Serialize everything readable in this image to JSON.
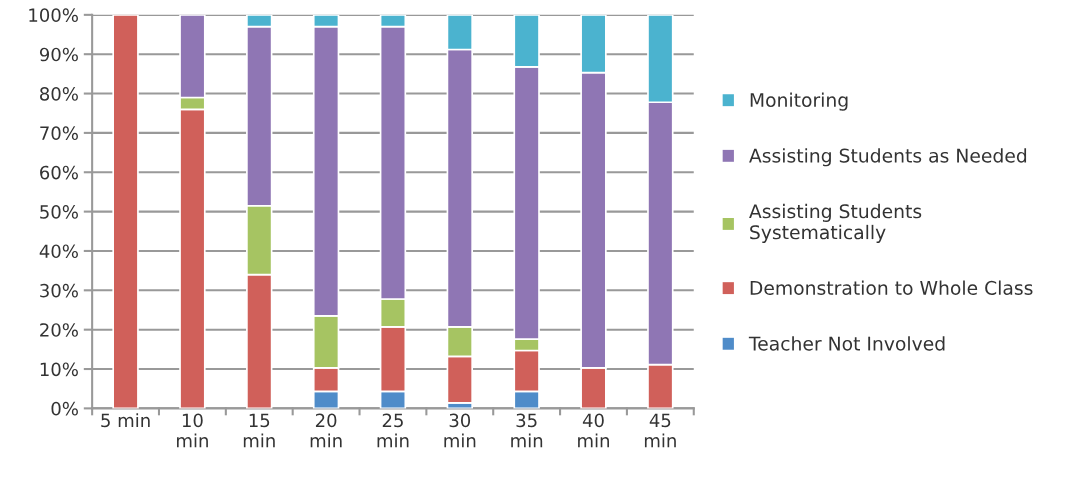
{
  "chart_data": {
    "type": "bar",
    "stacked": true,
    "categories": [
      "5 min",
      "10\nmin",
      "15\nmin",
      "20\nmin",
      "25\nmin",
      "30\nmin",
      "35\nmin",
      "40\nmin",
      "45\nmin"
    ],
    "series": [
      {
        "name": "Teacher Not Involved",
        "color": "#4f8cc9",
        "values": [
          0,
          0,
          0,
          4.3,
          4.3,
          1.4,
          4.3,
          0,
          0
        ]
      },
      {
        "name": "Demonstration to Whole Class",
        "color": "#d0605a",
        "values": [
          100,
          76,
          34,
          6,
          16.4,
          11.8,
          10.4,
          10.3,
          11.1
        ]
      },
      {
        "name": "Assisting Students\nSystematically",
        "color": "#a6c462",
        "values": [
          0,
          3,
          17.5,
          13.2,
          7.1,
          7.5,
          2.9,
          0,
          0
        ]
      },
      {
        "name": "Assisting Students as Needed",
        "color": "#8f76b4",
        "values": [
          0,
          21,
          45.5,
          73.5,
          69.2,
          70.5,
          69.2,
          75,
          66.7
        ]
      },
      {
        "name": "Monitoring",
        "color": "#4bb3cf",
        "values": [
          0,
          0,
          3,
          3,
          3,
          8.8,
          13.2,
          14.7,
          22.2
        ]
      }
    ],
    "ylim": [
      0,
      100
    ],
    "yticks": [
      {
        "value": 0,
        "label": "0%"
      },
      {
        "value": 10,
        "label": "10%"
      },
      {
        "value": 20,
        "label": "20%"
      },
      {
        "value": 30,
        "label": "30%"
      },
      {
        "value": 40,
        "label": "40%"
      },
      {
        "value": 50,
        "label": "50%"
      },
      {
        "value": 60,
        "label": "60%"
      },
      {
        "value": 70,
        "label": "70%"
      },
      {
        "value": 80,
        "label": "80%"
      },
      {
        "value": 90,
        "label": "90%"
      },
      {
        "value": 100,
        "label": "100%"
      }
    ],
    "grid": "y",
    "legend": "right"
  }
}
